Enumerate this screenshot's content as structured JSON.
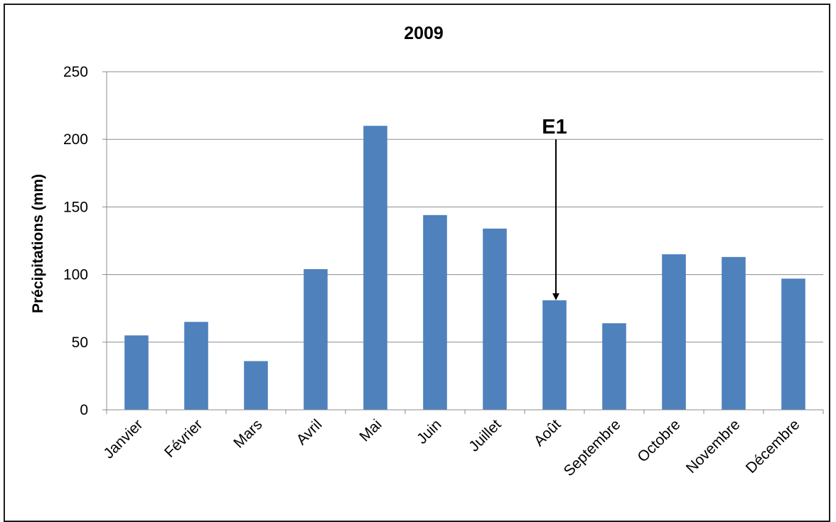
{
  "chart_data": {
    "type": "bar",
    "title": "2009",
    "xlabel": "",
    "ylabel": "Précipitations (mm)",
    "ylim": [
      0,
      250
    ],
    "yticks": [
      0,
      50,
      100,
      150,
      200,
      250
    ],
    "grid": true,
    "legend": "none",
    "bar_color": "#4f81bd",
    "categories": [
      "Janvier",
      "Février",
      "Mars",
      "Avril",
      "Mai",
      "Juin",
      "Juillet",
      "Août",
      "Septembre",
      "Octobre",
      "Novembre",
      "Décembre"
    ],
    "values": [
      55,
      65,
      36,
      104,
      210,
      144,
      134,
      81,
      64,
      115,
      113,
      97
    ],
    "annotations": [
      {
        "text": "E1",
        "category": "Août",
        "arrow_from_value": 200,
        "arrow_to_value": 81
      }
    ]
  }
}
